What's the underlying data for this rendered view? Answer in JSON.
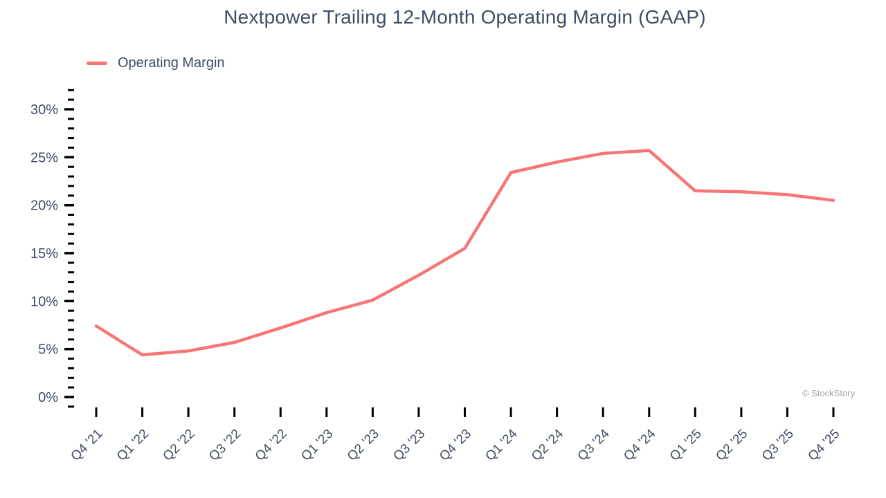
{
  "colors": {
    "series": "#F87575",
    "text": "#404E63",
    "tick": "#000000",
    "watermark": "#9FA4AB"
  },
  "legend": {
    "position": "top-left"
  },
  "watermark": "© StockStory",
  "chart_data": {
    "type": "line",
    "title": "Nextpower Trailing 12-Month Operating Margin (GAAP)",
    "categories": [
      "Q4 '21",
      "Q1 '22",
      "Q2 '22",
      "Q3 '22",
      "Q4 '22",
      "Q1 '23",
      "Q2 '23",
      "Q3 '23",
      "Q4 '23",
      "Q1 '24",
      "Q2 '24",
      "Q3 '24",
      "Q4 '24",
      "Q1 '25",
      "Q2 '25",
      "Q3 '25",
      "Q4 '25"
    ],
    "series": [
      {
        "name": "Operating Margin",
        "color": "#F87575",
        "values": [
          7.4,
          4.4,
          4.8,
          5.7,
          7.2,
          8.8,
          10.1,
          12.7,
          15.5,
          23.4,
          24.5,
          25.4,
          25.7,
          21.5,
          21.4,
          21.1,
          20.5
        ]
      }
    ],
    "xlabel": "",
    "ylabel": "",
    "y_tick_suffix": "%",
    "y_major_ticks": [
      0,
      5,
      10,
      15,
      20,
      25,
      30
    ],
    "y_minor_tick_step": 1,
    "y_tick_range": [
      -1,
      32
    ],
    "ylim": [
      -1.5,
      32.5
    ],
    "grid": false,
    "legend_position": "top-left"
  }
}
